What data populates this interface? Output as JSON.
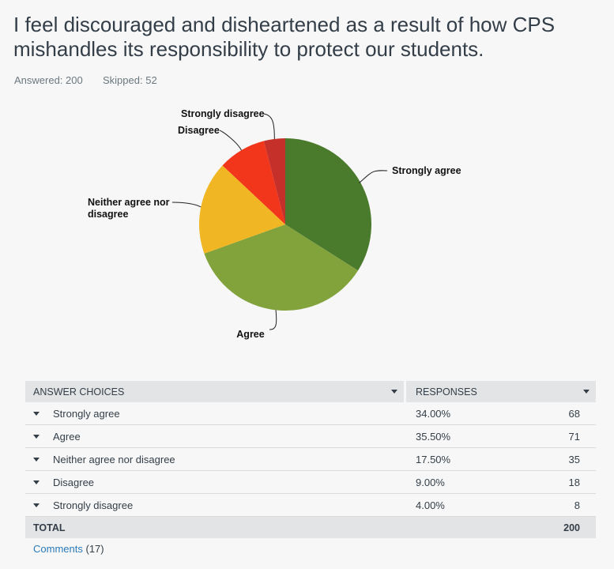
{
  "question": {
    "title": "I feel discouraged and disheartened as a result of how CPS mishandles its responsibility to protect our students."
  },
  "stats": {
    "answered_label": "Answered:",
    "answered": "200",
    "skipped_label": "Skipped:",
    "skipped": "52"
  },
  "chart_data": {
    "type": "pie",
    "categories": [
      "Strongly agree",
      "Agree",
      "Neither agree nor disagree",
      "Disagree",
      "Strongly disagree"
    ],
    "values": [
      34.0,
      35.5,
      17.5,
      9.0,
      4.0
    ],
    "colors": [
      "#4a7a2b",
      "#82a33c",
      "#f0b623",
      "#f2361b",
      "#c6302b"
    ],
    "title": ""
  },
  "table": {
    "header_choice": "ANSWER CHOICES",
    "header_responses": "RESPONSES",
    "rows": [
      {
        "choice": "Strongly agree",
        "pct": "34.00%",
        "count": "68"
      },
      {
        "choice": "Agree",
        "pct": "35.50%",
        "count": "71"
      },
      {
        "choice": "Neither agree nor disagree",
        "pct": "17.50%",
        "count": "35"
      },
      {
        "choice": "Disagree",
        "pct": "9.00%",
        "count": "18"
      },
      {
        "choice": "Strongly disagree",
        "pct": "4.00%",
        "count": "8"
      }
    ],
    "total_label": "TOTAL",
    "total": "200"
  },
  "comments": {
    "label": "Comments",
    "count": "(17)"
  }
}
